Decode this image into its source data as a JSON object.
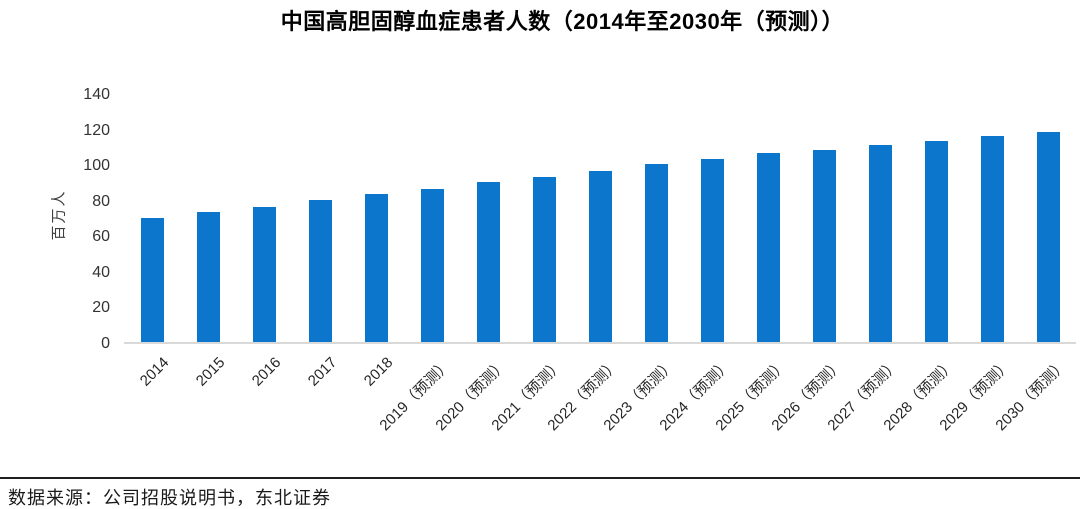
{
  "page": {
    "title": "中国高胆固醇血症患者人数（2014年至2030年（预测））",
    "source_text": "数据来源：公司招股说明书，东北证券"
  },
  "chart_data": {
    "type": "bar",
    "title": "中国高胆固醇血症患者人数（2014年至2030年（预测））",
    "xlabel": "",
    "ylabel": "百万人",
    "ylim": [
      0,
      140
    ],
    "yticks": [
      0,
      20,
      40,
      60,
      80,
      100,
      120,
      140
    ],
    "grid": false,
    "legend": "none",
    "bar_color": "#0B76CC",
    "axis_line_color": "#D9D9D9",
    "categories": [
      "2014",
      "2015",
      "2016",
      "2017",
      "2018",
      "2019（预测）",
      "2020（预测）",
      "2021（预测）",
      "2022（预测）",
      "2023（预测）",
      "2024（预测）",
      "2025（预测）",
      "2026（预测）",
      "2027（预测）",
      "2028（预测）",
      "2029（预测）",
      "2030（预测）"
    ],
    "values": [
      70,
      73,
      76,
      80,
      83,
      86,
      90,
      93,
      96,
      100,
      103,
      106,
      108,
      111,
      113,
      116,
      118
    ]
  }
}
